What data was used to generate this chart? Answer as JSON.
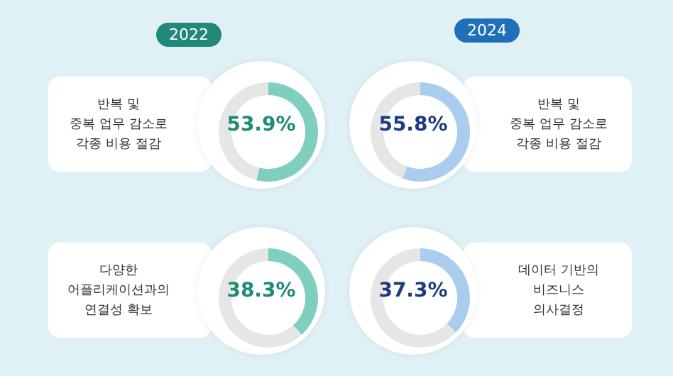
{
  "chart_data": [
    {
      "type": "donut",
      "title": "2022",
      "subtitle": "반복 및\n중복 업무 감소로\n각종 비용 절감",
      "categories": [
        null,
        null
      ],
      "values": [
        53.9,
        46.1
      ],
      "colors": [
        "#7fcfbe",
        "#e6e6e6"
      ],
      "annotations": [
        "53.9%"
      ]
    },
    {
      "type": "donut",
      "title": "2024",
      "subtitle": "반복 및\n중복 업무 감소로\n각종 비용 절감",
      "categories": [
        null,
        null
      ],
      "values": [
        55.8,
        44.2
      ],
      "colors": [
        "#aacdee",
        "#e6e6e6"
      ],
      "annotations": [
        "55.8%"
      ]
    },
    {
      "type": "donut",
      "subtitle": "다양한\n어플리케이션과의\n연결성 확보",
      "categories": [
        null,
        null
      ],
      "values": [
        38.3,
        61.7
      ],
      "colors": [
        "#7fcfbe",
        "#e6e6e6"
      ],
      "annotations": [
        "38.3%"
      ]
    },
    {
      "type": "donut",
      "subtitle": "데이터 기반의\n비즈니스\n의사결정",
      "categories": [
        null,
        null
      ],
      "values": [
        37.3,
        62.7
      ],
      "colors": [
        "#aacdee",
        "#e6e6e6"
      ],
      "annotations": [
        "37.3%"
      ]
    }
  ]
}
